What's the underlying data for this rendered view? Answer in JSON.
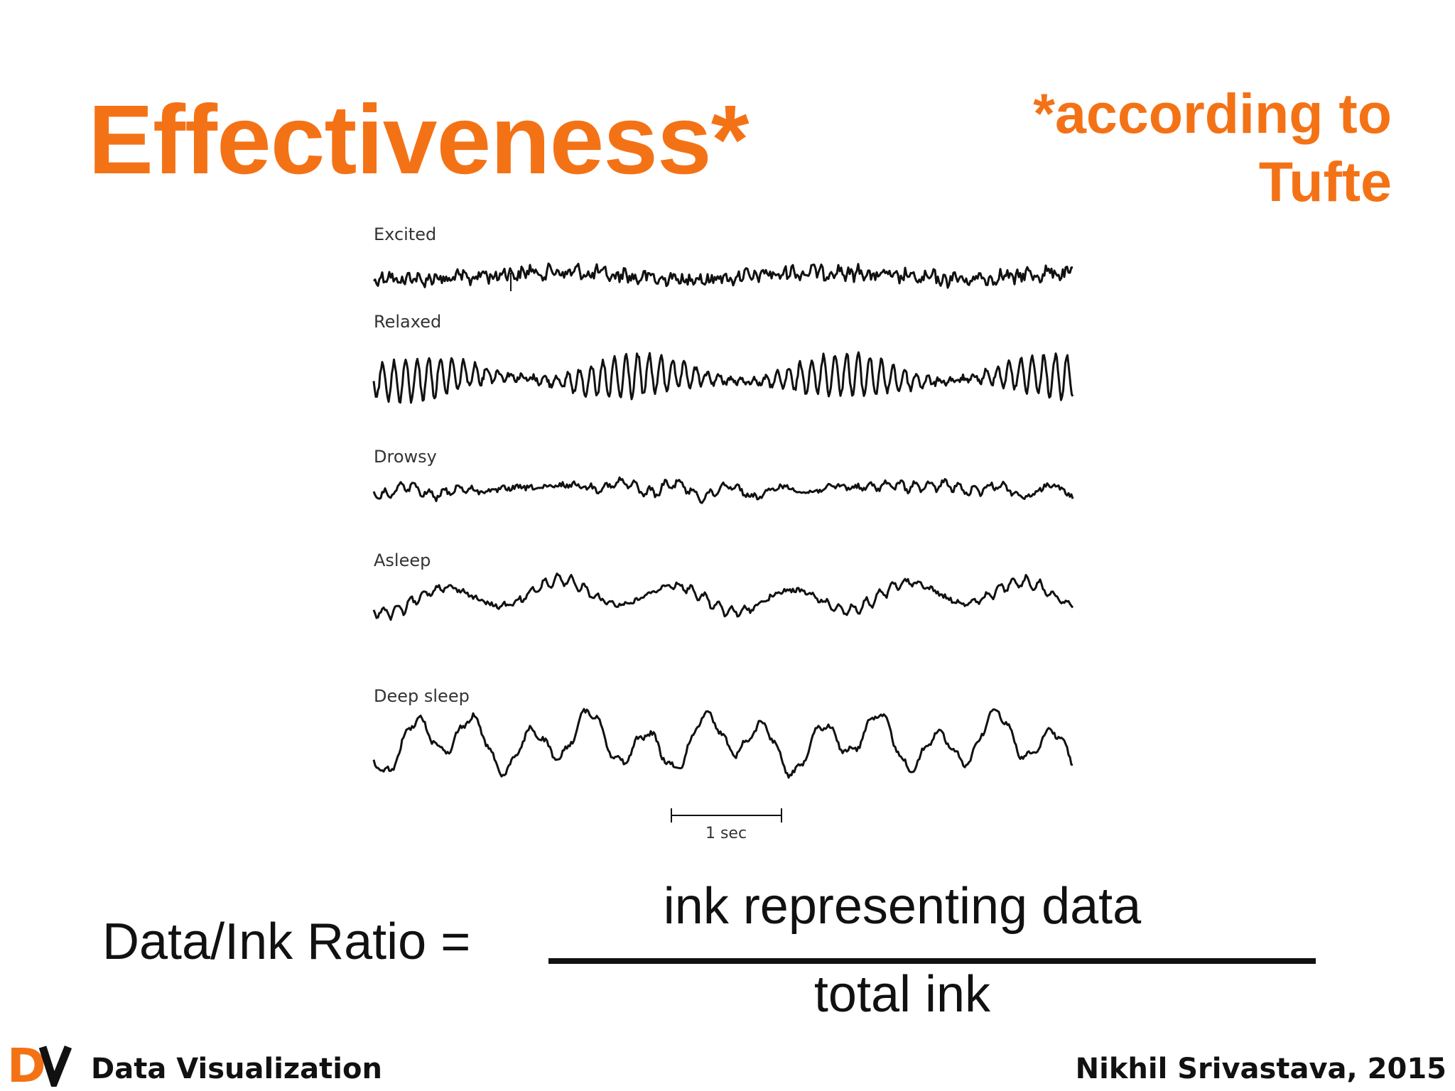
{
  "slide": {
    "title": "Effectiveness*",
    "note": "*according to Tufte",
    "colors": {
      "accent": "#f47216",
      "text": "#111111",
      "trace": "#111111"
    }
  },
  "figure": {
    "traces": [
      {
        "label": "Excited"
      },
      {
        "label": "Relaxed"
      },
      {
        "label": "Drowsy"
      },
      {
        "label": "Asleep"
      },
      {
        "label": "Deep sleep"
      }
    ],
    "scale_bar_label": "1 sec"
  },
  "formula": {
    "lhs": "Data/Ink Ratio =",
    "numerator": "ink representing data",
    "denominator": "total ink"
  },
  "footer": {
    "logo_text": "DV",
    "course": "Data Visualization",
    "author": "Nikhil Srivastava, 2015"
  }
}
